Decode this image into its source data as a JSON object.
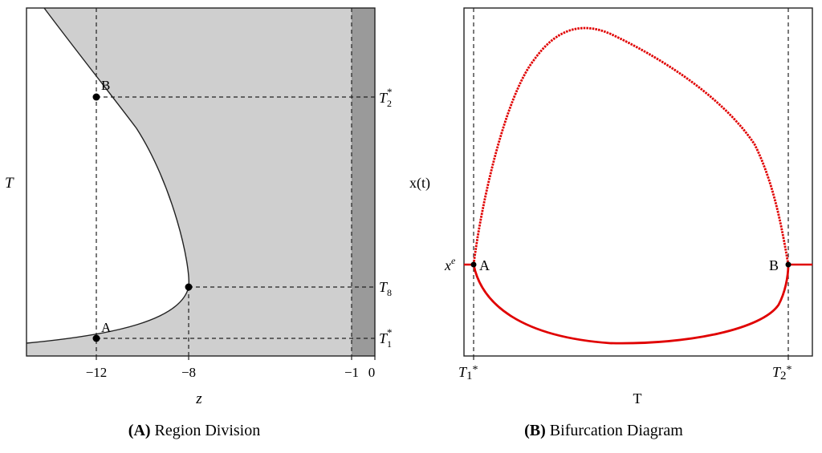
{
  "chart_data": [
    {
      "type": "area",
      "caption_bold": "(A)",
      "caption_text": " Region Division",
      "xlabel": "z",
      "ylabel": "T",
      "xlim": [
        -15,
        0
      ],
      "x_ticks": [
        {
          "value": -12,
          "label": "−12"
        },
        {
          "value": -8,
          "label": "−8"
        },
        {
          "value": -1,
          "label": "−1"
        },
        {
          "value": 0,
          "label": "0"
        }
      ],
      "regions": [
        {
          "name": "shaded",
          "color": "#cfcfcf"
        },
        {
          "name": "dark strip",
          "from_z": -1,
          "to_z": 0,
          "color": "#9a9a9a"
        }
      ],
      "points": [
        {
          "label": "A",
          "z": -12,
          "level": "T1*"
        },
        {
          "label": "B",
          "z": -12,
          "level": "T2*"
        },
        {
          "label": "",
          "z": -8,
          "level": "T8"
        }
      ],
      "level_labels": {
        "t2_base": "T",
        "t2_sub": "2",
        "t2_sup": "*",
        "t8_base": "T",
        "t8_sub": "8",
        "t1_base": "T",
        "t1_sub": "1",
        "t1_sup": "*"
      },
      "grid": false
    },
    {
      "type": "line",
      "caption_bold": "(B)",
      "caption_text": " Bifurcation Diagram",
      "xlabel": "T",
      "ylabel": "x(t)",
      "x_ticks": [
        {
          "name": "T1*",
          "base": "T",
          "mid": "1",
          "sup": "*"
        },
        {
          "name": "T2*",
          "base": "T",
          "mid": "2",
          "sup": "*"
        }
      ],
      "y_tick": {
        "base": "x",
        "sup": "e"
      },
      "points": [
        {
          "label": "A"
        },
        {
          "label": "B"
        }
      ],
      "series_color": "#e00000",
      "grid": false
    }
  ]
}
